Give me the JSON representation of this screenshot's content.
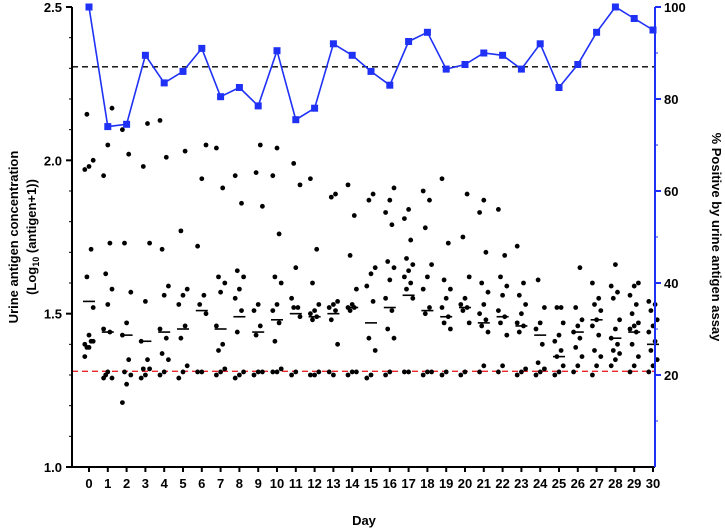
{
  "chart_data": {
    "type": "scatter",
    "title": "",
    "xlabel": "Day",
    "ylabel_line1": "Urine antigen concentration",
    "ylabel_line2_prefix": "(Log",
    "ylabel_line2_sub": "10",
    "ylabel_line2_suffix": " (antigen+1))",
    "y2label": "% Positive by urine antigen assay",
    "categories": [
      0,
      1,
      2,
      3,
      4,
      5,
      6,
      7,
      8,
      9,
      10,
      11,
      12,
      13,
      14,
      15,
      16,
      17,
      18,
      19,
      20,
      21,
      22,
      23,
      24,
      25,
      26,
      27,
      28,
      29,
      30
    ],
    "x_tick_labels": [
      "0",
      "1",
      "2",
      "3",
      "4",
      "5",
      "6",
      "7",
      "8",
      "9",
      "10",
      "11",
      "12",
      "13",
      "14",
      "15",
      "16",
      "17",
      "18",
      "19",
      "20",
      "21",
      "22",
      "23",
      "24",
      "25",
      "26",
      "27",
      "28",
      "29",
      "30"
    ],
    "ylim": [
      1.0,
      2.5
    ],
    "y_ticks": [
      1.0,
      1.5,
      2.0,
      2.5
    ],
    "y_tick_labels": [
      "1.0",
      "1.5",
      "2.0",
      "2.5"
    ],
    "y2lim": [
      0,
      100
    ],
    "y2_ticks": [
      20,
      40,
      60,
      80,
      100
    ],
    "y2_tick_labels": [
      "20",
      "40",
      "60",
      "80",
      "100"
    ],
    "reference_lines": [
      {
        "axis": "y",
        "value": 1.312,
        "color": "#e8262a",
        "style": "dashed"
      },
      {
        "axis": "y2",
        "value": 87,
        "color": "#000000",
        "style": "dashed"
      }
    ],
    "grid": false,
    "scatter_series": {
      "color": "#000000",
      "points": [
        [
          1.4,
          1.39,
          1.41,
          1.39,
          1.41,
          1.36,
          1.43,
          1.52,
          1.62,
          1.71,
          1.97,
          1.98,
          2.0,
          2.15
        ],
        [
          1.29,
          1.31,
          1.29,
          1.3,
          1.44,
          1.45,
          1.53,
          1.58,
          1.63,
          1.73,
          1.95,
          2.05,
          2.17
        ],
        [
          1.21,
          1.27,
          1.3,
          1.31,
          1.35,
          1.43,
          1.47,
          1.57,
          1.73,
          2.02,
          2.1
        ],
        [
          1.29,
          1.3,
          1.32,
          1.32,
          1.35,
          1.41,
          1.54,
          1.73,
          1.98,
          2.12
        ],
        [
          1.3,
          1.31,
          1.35,
          1.37,
          1.42,
          1.45,
          1.56,
          1.59,
          1.71,
          2.01,
          2.13
        ],
        [
          1.29,
          1.31,
          1.33,
          1.42,
          1.46,
          1.53,
          1.56,
          1.58,
          1.77,
          2.03
        ],
        [
          1.31,
          1.31,
          1.5,
          1.53,
          1.56,
          1.72,
          1.94,
          2.05
        ],
        [
          1.3,
          1.31,
          1.32,
          1.38,
          1.4,
          1.46,
          1.57,
          1.6,
          1.62,
          1.91,
          2.04
        ],
        [
          1.29,
          1.3,
          1.31,
          1.44,
          1.51,
          1.55,
          1.58,
          1.62,
          1.64,
          1.86,
          1.95
        ],
        [
          1.3,
          1.31,
          1.31,
          1.43,
          1.46,
          1.51,
          1.53,
          1.85,
          1.96,
          2.05
        ],
        [
          1.31,
          1.31,
          1.32,
          1.41,
          1.47,
          1.51,
          1.53,
          1.6,
          1.62,
          1.76,
          1.95,
          2.04
        ],
        [
          1.3,
          1.31,
          1.49,
          1.52,
          1.52,
          1.55,
          1.65,
          1.92,
          1.99
        ],
        [
          1.3,
          1.3,
          1.31,
          1.48,
          1.49,
          1.5,
          1.51,
          1.53,
          1.6,
          1.71,
          1.94
        ],
        [
          1.31,
          1.3,
          1.4,
          1.48,
          1.51,
          1.52,
          1.53,
          1.54,
          1.88,
          1.89
        ],
        [
          1.3,
          1.31,
          1.31,
          1.51,
          1.52,
          1.52,
          1.53,
          1.58,
          1.69,
          1.82,
          1.92
        ],
        [
          1.29,
          1.3,
          1.38,
          1.42,
          1.54,
          1.59,
          1.63,
          1.65,
          1.87,
          1.89
        ],
        [
          1.3,
          1.31,
          1.42,
          1.45,
          1.51,
          1.55,
          1.61,
          1.65,
          1.67,
          1.79,
          1.83,
          1.87,
          1.91
        ],
        [
          1.31,
          1.31,
          1.55,
          1.58,
          1.6,
          1.62,
          1.64,
          1.66,
          1.68,
          1.74,
          1.81,
          1.84
        ],
        [
          1.3,
          1.31,
          1.31,
          1.5,
          1.52,
          1.58,
          1.62,
          1.66,
          1.78,
          1.87,
          1.9
        ],
        [
          1.3,
          1.31,
          1.45,
          1.47,
          1.49,
          1.52,
          1.55,
          1.58,
          1.61,
          1.73,
          1.94
        ],
        [
          1.3,
          1.31,
          1.47,
          1.51,
          1.52,
          1.53,
          1.55,
          1.62,
          1.75,
          1.89
        ],
        [
          1.31,
          1.33,
          1.44,
          1.46,
          1.48,
          1.5,
          1.53,
          1.57,
          1.6,
          1.7,
          1.83,
          1.87
        ],
        [
          1.31,
          1.33,
          1.43,
          1.47,
          1.49,
          1.51,
          1.56,
          1.59,
          1.62,
          1.69,
          1.84
        ],
        [
          1.3,
          1.31,
          1.32,
          1.44,
          1.46,
          1.47,
          1.5,
          1.53,
          1.56,
          1.6,
          1.72
        ],
        [
          1.3,
          1.31,
          1.32,
          1.34,
          1.4,
          1.45,
          1.47,
          1.52,
          1.61
        ],
        [
          1.3,
          1.31,
          1.33,
          1.36,
          1.38,
          1.41,
          1.43,
          1.47,
          1.52,
          1.52
        ],
        [
          1.31,
          1.33,
          1.36,
          1.39,
          1.42,
          1.44,
          1.46,
          1.48,
          1.52,
          1.65
        ],
        [
          1.3,
          1.33,
          1.36,
          1.38,
          1.43,
          1.46,
          1.48,
          1.51,
          1.53,
          1.55,
          1.6
        ],
        [
          1.33,
          1.35,
          1.37,
          1.38,
          1.4,
          1.42,
          1.45,
          1.48,
          1.55,
          1.57,
          1.59,
          1.66
        ],
        [
          1.31,
          1.33,
          1.36,
          1.4,
          1.44,
          1.45,
          1.46,
          1.47,
          1.5,
          1.53,
          1.56,
          1.59,
          1.6
        ],
        [
          1.31,
          1.33,
          1.35,
          1.38,
          1.41,
          1.44,
          1.46,
          1.48,
          1.51,
          1.53,
          1.54
        ]
      ],
      "medians": [
        1.54,
        1.44,
        1.43,
        1.41,
        1.44,
        1.45,
        1.51,
        1.45,
        1.49,
        1.44,
        1.48,
        1.5,
        1.49,
        1.5,
        1.52,
        1.47,
        1.52,
        1.56,
        1.51,
        1.49,
        1.52,
        1.47,
        1.49,
        1.46,
        1.43,
        1.36,
        1.44,
        1.48,
        1.42,
        1.44,
        1.4
      ]
    },
    "line_series": {
      "axis": "y2",
      "color": "#1f31f5",
      "marker": "square",
      "values": [
        100,
        74,
        74.5,
        89.5,
        83.5,
        86,
        91,
        80.5,
        82.5,
        78.5,
        90.5,
        75.5,
        78,
        92,
        89.5,
        86,
        83,
        92.5,
        94.5,
        86.5,
        87.5,
        90,
        89.5,
        86.5,
        92,
        82.5,
        87.5,
        94.5,
        100,
        97.5,
        95
      ]
    }
  }
}
